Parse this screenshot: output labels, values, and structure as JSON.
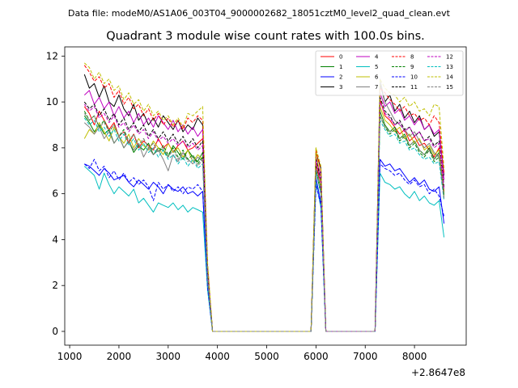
{
  "figure": {
    "suptitle": "Data file: modeM0/AS1A06_003T04_9000002682_18051cztM0_level2_quad_clean.evt"
  },
  "chart_data": {
    "type": "line",
    "title": "Quadrant 3 module wise count rates with 100.0s bins.",
    "xlabel": "",
    "ylabel": "",
    "x_offset_label": "+2.8647e8",
    "xlim": [
      900,
      9050
    ],
    "ylim": [
      -0.6,
      12.4
    ],
    "xticks": [
      1000,
      2000,
      3000,
      4000,
      5000,
      6000,
      7000,
      8000
    ],
    "yticks": [
      0,
      2,
      4,
      6,
      8,
      10,
      12
    ],
    "legend": {
      "position": "top-right",
      "ncol": 4
    },
    "x": [
      1300,
      1400,
      1500,
      1600,
      1700,
      1800,
      1900,
      2000,
      2100,
      2200,
      2300,
      2400,
      2500,
      2600,
      2700,
      2800,
      2900,
      3000,
      3100,
      3200,
      3300,
      3400,
      3500,
      3600,
      3700,
      3800,
      3900,
      4000,
      4500,
      5000,
      5500,
      5900,
      6000,
      6100,
      6200,
      6500,
      7000,
      7200,
      7300,
      7400,
      7500,
      7600,
      7700,
      7800,
      7900,
      8000,
      8100,
      8200,
      8300,
      8400,
      8500,
      8600
    ],
    "series": [
      {
        "name": "0",
        "color": "#ff0000",
        "dash": false,
        "values": [
          9.8,
          9.5,
          9.0,
          9.6,
          9.2,
          8.8,
          9.1,
          8.5,
          8.7,
          8.2,
          8.6,
          8.0,
          8.3,
          8.1,
          7.9,
          8.4,
          8.0,
          8.2,
          7.8,
          8.1,
          8.3,
          7.9,
          8.0,
          8.2,
          8.4,
          2.5,
          0,
          0,
          0,
          0,
          0,
          0,
          7.3,
          6.4,
          0,
          0,
          0,
          0,
          10.1,
          9.4,
          9.2,
          8.9,
          8.6,
          8.8,
          8.3,
          8.5,
          8.1,
          8.2,
          7.9,
          7.6,
          8.0,
          6.1
        ]
      },
      {
        "name": "1",
        "color": "#008000",
        "dash": false,
        "values": [
          9.4,
          9.1,
          8.7,
          9.0,
          8.6,
          8.8,
          8.2,
          8.5,
          8.0,
          8.3,
          7.8,
          8.1,
          7.9,
          8.2,
          7.7,
          8.0,
          7.9,
          7.6,
          8.1,
          7.8,
          7.5,
          7.9,
          7.6,
          7.4,
          7.8,
          2.3,
          0,
          0,
          0,
          0,
          0,
          0,
          7.0,
          6.0,
          0,
          0,
          0,
          0,
          9.6,
          9.0,
          8.7,
          8.9,
          8.4,
          8.6,
          8.1,
          8.3,
          7.9,
          7.7,
          8.0,
          7.5,
          7.8,
          6.0
        ]
      },
      {
        "name": "2",
        "color": "#0000ff",
        "dash": false,
        "values": [
          7.3,
          7.2,
          7.0,
          6.8,
          7.1,
          6.9,
          6.6,
          6.7,
          6.8,
          6.5,
          6.3,
          6.6,
          6.4,
          6.2,
          6.5,
          6.3,
          6.0,
          6.4,
          6.2,
          6.1,
          6.3,
          6.0,
          6.1,
          5.9,
          6.1,
          1.9,
          0,
          0,
          0,
          0,
          0,
          0,
          6.7,
          5.6,
          0,
          0,
          0,
          0,
          7.5,
          7.2,
          7.3,
          7.0,
          7.1,
          6.8,
          6.5,
          6.7,
          6.4,
          6.6,
          6.2,
          6.1,
          6.3,
          4.7
        ]
      },
      {
        "name": "3",
        "color": "#000000",
        "dash": false,
        "values": [
          11.2,
          10.6,
          10.8,
          10.2,
          10.7,
          10.0,
          9.8,
          10.3,
          9.7,
          9.4,
          9.9,
          9.2,
          9.5,
          9.0,
          9.3,
          8.9,
          9.4,
          9.1,
          8.8,
          9.2,
          8.7,
          9.0,
          8.8,
          9.3,
          9.0,
          2.8,
          0,
          0,
          0,
          0,
          0,
          0,
          7.8,
          7.1,
          0,
          0,
          0,
          0,
          10.8,
          10.0,
          10.3,
          9.6,
          9.9,
          9.3,
          9.6,
          9.1,
          9.4,
          8.8,
          9.0,
          8.5,
          8.7,
          6.8
        ]
      },
      {
        "name": "4",
        "color": "#bf00bf",
        "dash": false,
        "values": [
          10.3,
          10.5,
          9.9,
          10.2,
          9.7,
          10.0,
          9.4,
          9.8,
          9.3,
          9.6,
          9.1,
          9.5,
          9.0,
          9.3,
          8.9,
          9.4,
          9.1,
          8.8,
          9.2,
          8.7,
          9.0,
          8.6,
          8.9,
          8.5,
          8.8,
          2.7,
          0,
          0,
          0,
          0,
          0,
          0,
          7.6,
          6.8,
          0,
          0,
          0,
          0,
          10.4,
          9.8,
          10.0,
          9.5,
          9.7,
          9.2,
          9.4,
          9.0,
          9.3,
          8.8,
          9.0,
          8.6,
          8.8,
          6.6
        ]
      },
      {
        "name": "5",
        "color": "#00bfbf",
        "dash": false,
        "values": [
          7.2,
          7.0,
          6.8,
          6.2,
          6.9,
          6.4,
          6.0,
          6.3,
          6.1,
          5.9,
          6.2,
          5.6,
          5.8,
          5.5,
          5.2,
          5.6,
          5.5,
          5.4,
          5.6,
          5.3,
          5.5,
          5.2,
          5.4,
          5.3,
          5.2,
          1.8,
          0,
          0,
          0,
          0,
          0,
          0,
          6.5,
          5.4,
          0,
          0,
          0,
          0,
          6.9,
          6.5,
          6.4,
          6.2,
          6.3,
          6.0,
          5.8,
          6.1,
          5.7,
          5.9,
          5.6,
          5.5,
          5.7,
          4.1
        ]
      },
      {
        "name": "6",
        "color": "#bfbf00",
        "dash": false,
        "values": [
          8.4,
          8.8,
          8.6,
          9.1,
          8.7,
          8.3,
          8.9,
          8.5,
          8.2,
          8.6,
          8.0,
          8.4,
          8.1,
          7.9,
          8.3,
          8.0,
          7.7,
          8.2,
          7.8,
          8.0,
          7.6,
          7.9,
          7.4,
          7.7,
          7.5,
          2.4,
          0,
          0,
          0,
          0,
          0,
          0,
          8.0,
          6.3,
          0,
          0,
          0,
          0,
          9.8,
          9.2,
          9.0,
          8.7,
          8.9,
          8.4,
          8.6,
          8.2,
          8.4,
          7.9,
          8.1,
          7.7,
          7.9,
          5.9
        ]
      },
      {
        "name": "7",
        "color": "#808080",
        "dash": false,
        "values": [
          9.1,
          8.9,
          8.6,
          8.9,
          8.4,
          8.7,
          8.2,
          8.5,
          8.0,
          8.3,
          7.9,
          8.2,
          7.6,
          8.0,
          7.7,
          7.9,
          7.5,
          7.0,
          7.7,
          7.4,
          7.8,
          7.5,
          7.3,
          7.6,
          7.4,
          2.3,
          0,
          0,
          0,
          0,
          0,
          0,
          7.1,
          6.2,
          0,
          0,
          0,
          0,
          11.0,
          10.0,
          9.6,
          9.2,
          9.0,
          8.8,
          8.5,
          8.7,
          8.3,
          8.0,
          8.2,
          7.8,
          7.6,
          5.8
        ]
      },
      {
        "name": "8",
        "color": "#ff0000",
        "dash": true,
        "values": [
          11.6,
          11.3,
          10.9,
          11.1,
          10.6,
          10.8,
          10.2,
          10.5,
          9.9,
          10.2,
          9.7,
          9.9,
          9.4,
          9.7,
          9.2,
          9.5,
          9.0,
          9.3,
          8.9,
          9.2,
          8.8,
          9.3,
          9.1,
          9.4,
          9.2,
          2.9,
          0,
          0,
          0,
          0,
          0,
          0,
          7.9,
          7.0,
          0,
          0,
          0,
          0,
          10.6,
          10.4,
          10.1,
          9.9,
          9.6,
          9.8,
          9.4,
          9.5,
          9.2,
          9.3,
          9.0,
          9.4,
          9.1,
          6.9
        ]
      },
      {
        "name": "9",
        "color": "#008000",
        "dash": true,
        "values": [
          9.6,
          9.2,
          9.4,
          8.9,
          9.2,
          8.7,
          9.0,
          8.5,
          8.8,
          8.3,
          8.6,
          8.1,
          8.4,
          8.0,
          8.2,
          7.8,
          8.1,
          7.7,
          8.0,
          7.6,
          7.9,
          7.5,
          7.7,
          7.3,
          7.6,
          2.3,
          0,
          0,
          0,
          0,
          0,
          0,
          7.2,
          6.1,
          0,
          0,
          0,
          0,
          9.4,
          8.9,
          8.6,
          8.8,
          8.3,
          8.5,
          8.0,
          8.2,
          7.8,
          7.6,
          7.9,
          7.4,
          7.6,
          5.9
        ]
      },
      {
        "name": "10",
        "color": "#0000ff",
        "dash": true,
        "values": [
          7.3,
          7.1,
          7.5,
          7.0,
          7.2,
          6.7,
          7.0,
          6.6,
          6.9,
          6.5,
          6.7,
          6.4,
          6.6,
          6.3,
          5.7,
          6.5,
          6.2,
          6.4,
          6.1,
          6.3,
          6.0,
          6.3,
          6.2,
          6.4,
          6.1,
          1.9,
          0,
          0,
          0,
          0,
          0,
          0,
          6.4,
          5.5,
          0,
          0,
          0,
          0,
          7.3,
          7.1,
          7.0,
          6.8,
          6.9,
          6.6,
          6.4,
          6.6,
          6.3,
          6.4,
          6.0,
          6.2,
          5.9,
          5.0
        ]
      },
      {
        "name": "11",
        "color": "#000000",
        "dash": true,
        "values": [
          10.0,
          9.7,
          9.9,
          9.4,
          9.7,
          9.2,
          9.5,
          9.0,
          9.3,
          8.8,
          9.1,
          8.7,
          9.0,
          8.5,
          8.8,
          8.4,
          8.7,
          8.3,
          8.6,
          8.2,
          8.5,
          8.1,
          8.4,
          8.0,
          8.3,
          2.6,
          0,
          0,
          0,
          0,
          0,
          0,
          7.5,
          6.6,
          0,
          0,
          0,
          0,
          10.2,
          9.6,
          9.4,
          9.0,
          9.2,
          8.8,
          8.9,
          8.5,
          8.7,
          8.3,
          8.5,
          8.1,
          8.3,
          6.3
        ]
      },
      {
        "name": "12",
        "color": "#bf00bf",
        "dash": true,
        "values": [
          9.9,
          9.6,
          9.8,
          9.3,
          9.5,
          9.1,
          9.4,
          8.9,
          9.1,
          8.7,
          9.0,
          8.6,
          8.8,
          8.4,
          8.7,
          8.3,
          8.5,
          8.2,
          8.4,
          8.1,
          8.3,
          8.0,
          8.2,
          7.9,
          8.1,
          2.5,
          0,
          0,
          0,
          0,
          0,
          0,
          7.4,
          6.5,
          0,
          0,
          0,
          0,
          10.0,
          9.5,
          9.3,
          9.0,
          9.1,
          8.7,
          8.9,
          8.5,
          8.7,
          8.3,
          8.4,
          8.0,
          8.2,
          6.2
        ]
      },
      {
        "name": "13",
        "color": "#00bfbf",
        "dash": true,
        "values": [
          9.3,
          9.0,
          9.2,
          8.7,
          8.9,
          8.5,
          8.8,
          8.3,
          8.6,
          8.1,
          8.4,
          7.9,
          8.2,
          7.8,
          8.0,
          7.6,
          7.9,
          7.5,
          7.7,
          7.3,
          7.6,
          7.2,
          7.5,
          7.1,
          7.3,
          2.2,
          0,
          0,
          0,
          0,
          0,
          0,
          7.0,
          6.0,
          0,
          0,
          0,
          0,
          9.2,
          8.8,
          8.5,
          8.6,
          8.2,
          8.3,
          7.9,
          8.0,
          7.7,
          7.5,
          7.6,
          7.3,
          7.4,
          5.7
        ]
      },
      {
        "name": "14",
        "color": "#bfbf00",
        "dash": true,
        "values": [
          11.7,
          11.5,
          11.0,
          11.3,
          10.8,
          11.0,
          10.5,
          10.7,
          10.1,
          10.4,
          9.9,
          10.1,
          9.6,
          9.9,
          9.4,
          9.6,
          9.2,
          9.4,
          9.0,
          9.3,
          8.9,
          9.5,
          9.4,
          9.6,
          9.8,
          3.0,
          0,
          0,
          0,
          0,
          0,
          0,
          8.0,
          7.2,
          0,
          0,
          0,
          0,
          11.0,
          10.6,
          10.4,
          10.3,
          10.0,
          10.2,
          9.8,
          10.0,
          9.6,
          9.7,
          9.4,
          9.9,
          9.8,
          7.1
        ]
      },
      {
        "name": "15",
        "color": "#808080",
        "dash": true,
        "values": [
          9.5,
          9.2,
          9.4,
          8.9,
          9.1,
          8.7,
          9.0,
          8.5,
          8.7,
          8.3,
          8.6,
          8.1,
          8.4,
          8.0,
          8.2,
          7.8,
          8.0,
          7.6,
          7.9,
          7.5,
          7.8,
          7.4,
          7.6,
          7.2,
          7.5,
          2.3,
          0,
          0,
          0,
          0,
          0,
          0,
          7.1,
          6.1,
          0,
          0,
          0,
          0,
          9.4,
          8.9,
          8.7,
          8.8,
          8.4,
          8.5,
          8.1,
          8.3,
          7.9,
          7.7,
          7.9,
          7.5,
          7.7,
          5.8
        ]
      }
    ]
  }
}
